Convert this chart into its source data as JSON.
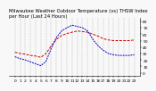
{
  "title": "Milwaukee Weather Outdoor Temperature (vs) THSW Index per Hour (Last 24 Hours)",
  "hours": [
    0,
    1,
    2,
    3,
    4,
    5,
    6,
    7,
    8,
    9,
    10,
    11,
    12,
    13,
    14,
    15,
    16,
    17,
    18,
    19,
    20,
    21,
    22,
    23
  ],
  "temp": [
    32,
    30,
    29,
    27,
    26,
    24,
    30,
    42,
    52,
    58,
    61,
    63,
    65,
    64,
    63,
    60,
    57,
    53,
    51,
    50,
    50,
    50,
    50,
    51
  ],
  "thsw": [
    25,
    22,
    20,
    17,
    14,
    11,
    18,
    38,
    55,
    65,
    70,
    74,
    72,
    70,
    65,
    52,
    42,
    35,
    30,
    28,
    27,
    27,
    27,
    28
  ],
  "temp_color": "#cc0000",
  "thsw_color": "#0000cc",
  "background_color": "#f8f8f8",
  "grid_color": "#999999",
  "ylim": [
    -5,
    85
  ],
  "ytick_vals": [
    0,
    10,
    20,
    30,
    40,
    50,
    60,
    70,
    80
  ],
  "ytick_labels": [
    "0",
    "10",
    "20",
    "30",
    "40",
    "50",
    "60",
    "70",
    "80"
  ],
  "title_fontsize": 3.8,
  "tick_fontsize": 3.2,
  "line_width": 0.7
}
